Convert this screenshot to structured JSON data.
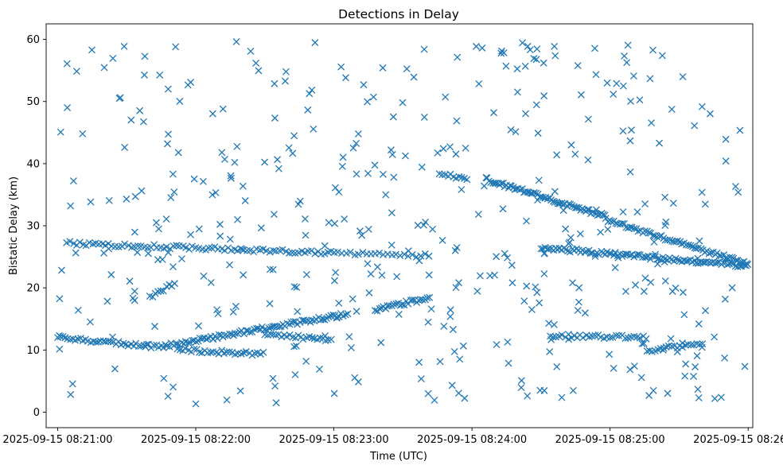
{
  "chart_data": {
    "type": "scatter",
    "title": "Detections in Delay",
    "xlabel": "Time (UTC)",
    "ylabel": "Bistatic Delay (km)",
    "x_unit": "seconds after 2025-09-15 08:21:00",
    "xlim": [
      -5,
      302
    ],
    "ylim": [
      -2.5,
      62.5
    ],
    "grid": false,
    "marker": "x",
    "color": "#1f77b4",
    "x_ticks": [
      {
        "value": 0,
        "label": "2025-09-15 08:21:00"
      },
      {
        "value": 60,
        "label": "2025-09-15 08:22:00"
      },
      {
        "value": 120,
        "label": "2025-09-15 08:23:00"
      },
      {
        "value": 180,
        "label": "2025-09-15 08:24:00"
      },
      {
        "value": 240,
        "label": "2025-09-15 08:25:00"
      },
      {
        "value": 300,
        "label": "2025-09-15 08:26:00"
      }
    ],
    "y_ticks": [
      0,
      10,
      20,
      30,
      40,
      50,
      60
    ],
    "tracks": [
      {
        "name": "track-a",
        "x_range": [
          0,
          44
        ],
        "y_start": 12.0,
        "y_end": 10.5,
        "step": 1.1
      },
      {
        "name": "track-b",
        "x_range": [
          44,
          126
        ],
        "y_start": 10.5,
        "y_end": 15.8,
        "step": 0.9
      },
      {
        "name": "track-c",
        "x_range": [
          138,
          162
        ],
        "y_start": 16.5,
        "y_end": 18.4,
        "step": 0.9
      },
      {
        "name": "track-d",
        "x_range": [
          4,
          120
        ],
        "y_start": 27.2,
        "y_end": 25.6,
        "step": 1.4
      },
      {
        "name": "track-e",
        "x_range": [
          120,
          162
        ],
        "y_start": 25.5,
        "y_end": 25.2,
        "step": 1.8
      },
      {
        "name": "track-f",
        "x_range": [
          52,
          90
        ],
        "y_start": 10.0,
        "y_end": 9.3,
        "step": 1.2
      },
      {
        "name": "track-g",
        "x_range": [
          90,
          120
        ],
        "y_start": 12.5,
        "y_end": 11.6,
        "step": 1.2
      },
      {
        "name": "track-h",
        "x_range": [
          186,
          238
        ],
        "y_start": 37.5,
        "y_end": 31.5,
        "step": 0.75
      },
      {
        "name": "track-i",
        "x_range": [
          238,
          300
        ],
        "y_start": 31.0,
        "y_end": 23.8,
        "step": 0.9
      },
      {
        "name": "track-j",
        "x_range": [
          210,
          300
        ],
        "y_start": 26.5,
        "y_end": 23.5,
        "step": 0.9
      },
      {
        "name": "track-k",
        "x_range": [
          214,
          256
        ],
        "y_start": 12.3,
        "y_end": 12.0,
        "step": 1.3
      },
      {
        "name": "track-l",
        "x_range": [
          256,
          280
        ],
        "y_start": 9.8,
        "y_end": 11.2,
        "step": 1.2
      },
      {
        "name": "track-m",
        "x_range": [
          40,
          52
        ],
        "y_start": 18.5,
        "y_end": 21.0,
        "step": 1.2
      },
      {
        "name": "track-n",
        "x_range": [
          166,
          178
        ],
        "y_start": 38.5,
        "y_end": 37.5,
        "step": 1.2
      }
    ],
    "clutter": {
      "count": 420,
      "x_range": [
        0,
        300
      ],
      "y_range": [
        1,
        60
      ],
      "seed": 20250915
    }
  }
}
